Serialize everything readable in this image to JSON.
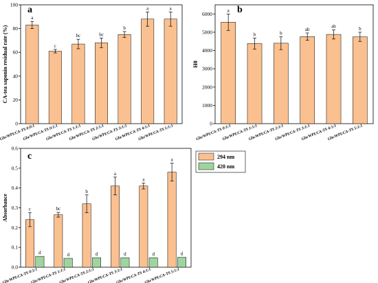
{
  "chart_data": [
    {
      "panel": "a",
      "type": "bar",
      "title": "",
      "ylabel": "CA-tea saponin residual rate (%)",
      "xlabel": "",
      "ylim": [
        0,
        100
      ],
      "yticks": [
        0,
        20,
        40,
        60,
        80,
        100
      ],
      "categories": [
        "Glu/WPI:CA-TS 0:0:1",
        "Glu/WPI:CA-TS 0:1:1",
        "Glu/WPI:CA-TS 1:1:1",
        "Glu/WPI:CA-TS 2:1:1",
        "Glu/WPI:CA-TS 3:1:1",
        "Glu/WPI:CA-TS 4:1:1",
        "Glu/WPI:CA-TS 5:1:1"
      ],
      "values": [
        83,
        61,
        67,
        68,
        75,
        88,
        88
      ],
      "errors": [
        3,
        1.5,
        4,
        4,
        2.5,
        6,
        6
      ],
      "significance": [
        "a",
        "c",
        "bc",
        "bc",
        "b",
        "a",
        "a"
      ],
      "color": "#fac090"
    },
    {
      "panel": "b",
      "type": "bar",
      "title": "",
      "ylabel": "H0",
      "xlabel": "",
      "ylim": [
        0,
        6500
      ],
      "yticks": [
        0,
        1000,
        2000,
        3000,
        4000,
        5000,
        6000
      ],
      "categories": [
        "Glu/WPI:CA-TS 0:1:1",
        "Glu/WPI:CA-TS 1:1:1",
        "Glu/WPI:CA-TS 2:1:1",
        "Glu/WPI:CA-TS 3:1:1",
        "Glu/WPI:CA-TS 4:1:1",
        "Glu/WPI:CA-TS 5:1:1"
      ],
      "values": [
        5550,
        4380,
        4400,
        4760,
        4880,
        4750
      ],
      "errors": [
        450,
        300,
        350,
        200,
        250,
        250
      ],
      "significance": [
        "a",
        "b",
        "b",
        "ab",
        "ab",
        "b"
      ],
      "color": "#fac090"
    },
    {
      "panel": "c",
      "type": "bar",
      "title": "",
      "ylabel": "Absorbance",
      "xlabel": "",
      "ylim": [
        0,
        0.6
      ],
      "yticks": [
        0.0,
        0.1,
        0.2,
        0.3,
        0.4,
        0.5,
        0.6
      ],
      "categories": [
        "Glu/WPI:CA-TS 0:1:1",
        "Glu/WPI:CA-TS 1:1:1",
        "Glu/WPI:CA-TS 2:1:1",
        "Glu/WPI:CA-TS 3:1:1",
        "Glu/WPI:CA-TS 4:1:1",
        "Glu/WPI:CA-TS 5:1:1"
      ],
      "series": [
        {
          "name": "294 nm",
          "values": [
            0.24,
            0.265,
            0.32,
            0.41,
            0.41,
            0.48
          ],
          "errors": [
            0.035,
            0.012,
            0.045,
            0.045,
            0.015,
            0.045
          ],
          "significance": [
            "c",
            "bc",
            "b",
            "a",
            "a",
            "a"
          ],
          "color": "#fac090"
        },
        {
          "name": "420 nm",
          "values": [
            0.055,
            0.045,
            0.048,
            0.048,
            0.048,
            0.05
          ],
          "errors": [
            0,
            0,
            0,
            0,
            0,
            0
          ],
          "significance": [
            "d",
            "d",
            "d",
            "d",
            "d",
            "d"
          ],
          "color": "#9fd49f"
        }
      ],
      "legend": "top-right"
    }
  ]
}
